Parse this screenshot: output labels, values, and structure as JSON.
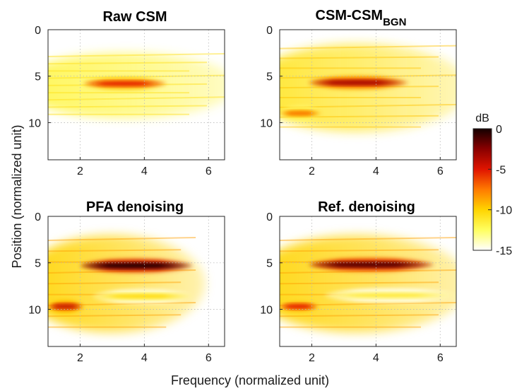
{
  "chart_data": {
    "type": "heatmap",
    "xlabel": "Frequency (normalized unit)",
    "ylabel": "Position (normalized unit)",
    "xlim": [
      1,
      6.5
    ],
    "ylim": [
      0,
      14
    ],
    "xticks": [
      2,
      4,
      6
    ],
    "yticks": [
      0,
      5,
      10
    ],
    "grid": true,
    "colormap": "hot",
    "colorbar": {
      "label": "dB",
      "range": [
        -15,
        0
      ],
      "ticks": [
        "0",
        "-5",
        "-10",
        "-15"
      ],
      "colors": [
        "#ffffff",
        "#ffff60",
        "#ffd400",
        "#ff7a00",
        "#e01400",
        "#8a0000",
        "#140000"
      ]
    },
    "panels": [
      {
        "title": "Raw CSM",
        "features": [
          {
            "kind": "ridge",
            "x": [
              2.1,
              4.7
            ],
            "y": 5.8,
            "peak_db": -5
          },
          {
            "kind": "band",
            "x": [
              1.0,
              6.5
            ],
            "y": [
              2.5,
              9.5
            ],
            "level_db": -12
          },
          {
            "kind": "spike",
            "x": 1.1,
            "y": [
              0,
              13
            ],
            "level_db": -11
          }
        ]
      },
      {
        "title": "CSM-CSM",
        "title_subscript": "BGN",
        "features": [
          {
            "kind": "ridge",
            "x": [
              1.9,
              5.0
            ],
            "y": 5.7,
            "peak_db": -3
          },
          {
            "kind": "ridge",
            "x": [
              1.0,
              2.3
            ],
            "y": 9.0,
            "peak_db": -7
          },
          {
            "kind": "band",
            "x": [
              1.0,
              6.5
            ],
            "y": [
              1.5,
              11.0
            ],
            "level_db": -11
          }
        ]
      },
      {
        "title": "PFA denoising",
        "features": [
          {
            "kind": "ridge",
            "x": [
              2.0,
              5.5
            ],
            "y": 5.3,
            "peak_db": 0
          },
          {
            "kind": "ridge",
            "x": [
              1.0,
              2.1
            ],
            "y": 9.7,
            "peak_db": -4
          },
          {
            "kind": "ridge",
            "x": [
              2.4,
              5.5
            ],
            "y": 8.6,
            "peak_db": -10
          },
          {
            "kind": "band",
            "x": [
              1.0,
              5.6
            ],
            "y": [
              2.0,
              12.5
            ],
            "level_db": -10
          }
        ]
      },
      {
        "title": "Ref. denoising",
        "features": [
          {
            "kind": "ridge",
            "x": [
              1.9,
              5.8
            ],
            "y": 5.2,
            "peak_db": -1
          },
          {
            "kind": "ridge",
            "x": [
              1.0,
              2.2
            ],
            "y": 9.7,
            "peak_db": -5
          },
          {
            "kind": "ridge",
            "x": [
              2.4,
              6.5
            ],
            "y": 8.5,
            "peak_db": -11
          },
          {
            "kind": "band",
            "x": [
              1.0,
              6.5
            ],
            "y": [
              2.0,
              12.5
            ],
            "level_db": -10
          }
        ]
      }
    ]
  }
}
